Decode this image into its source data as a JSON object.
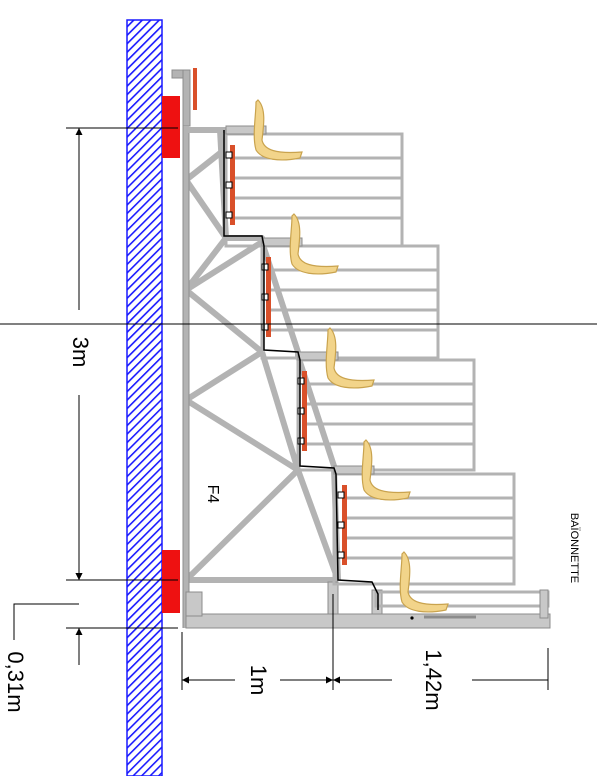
{
  "colors": {
    "wall_hatch": "#1a1aff",
    "frame": "#b3b3b3",
    "frame_stroke": "#8c8c8c",
    "support_red": "#ee1111",
    "rail_orange": "#d9502a",
    "seat": "#f2d48a",
    "seat_stroke": "#c9a34e",
    "dim_line": "#000000"
  },
  "labels": {
    "height_main": "3m",
    "height_small": "0,31m",
    "depth_first": "1m",
    "depth_second": "1,42m",
    "frame_code": "F4",
    "side_note": "BAÏONNETTE"
  },
  "icons": {
    "seat": "seat-icon",
    "wall": "wall-hatch-icon"
  }
}
